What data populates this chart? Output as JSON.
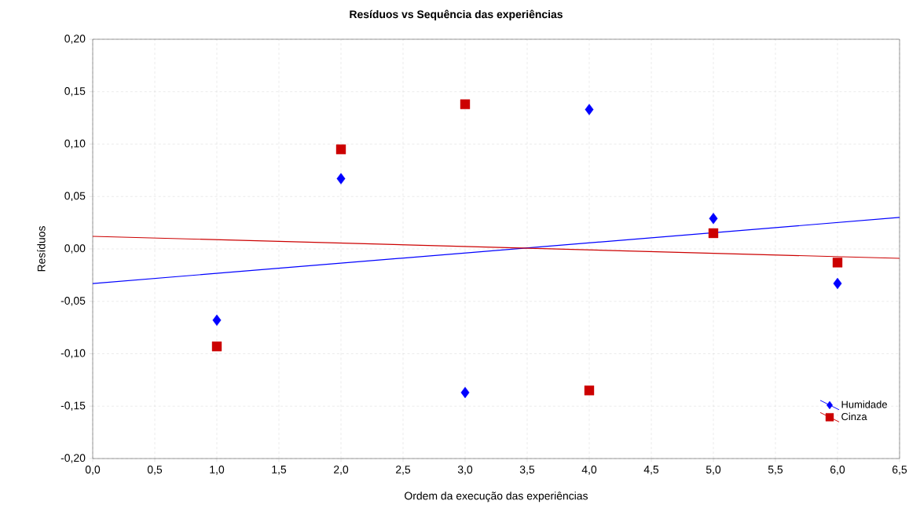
{
  "chart_data": {
    "type": "scatter",
    "title": "Resíduos vs Sequência das experiências",
    "xlabel": "Ordem da execução das experiências",
    "ylabel": "Resíduos",
    "series": [
      {
        "name": "Humidade",
        "type": "scatter",
        "color": "#0000ff",
        "marker": "diamond",
        "x": [
          1,
          2,
          3,
          4,
          5,
          6
        ],
        "values": [
          -0.068,
          0.067,
          -0.137,
          0.133,
          0.029,
          -0.033
        ]
      },
      {
        "name": "Cinza",
        "type": "scatter",
        "color": "#cc0000",
        "marker": "square",
        "x": [
          1,
          2,
          3,
          4,
          5,
          6
        ],
        "values": [
          -0.093,
          0.095,
          0.138,
          -0.135,
          0.015,
          -0.013
        ]
      },
      {
        "type": "line",
        "color": "#0000ff",
        "x": [
          0,
          6.5
        ],
        "values": [
          -0.033,
          0.03
        ]
      },
      {
        "type": "line",
        "color": "#cc0000",
        "x": [
          0,
          6.5
        ],
        "values": [
          0.012,
          -0.009
        ]
      }
    ],
    "xlim": [
      0,
      6.5
    ],
    "ylim": [
      -0.2,
      0.2
    ],
    "xticks": [
      {
        "value": 0,
        "label": "0,0"
      },
      {
        "value": 0.5,
        "label": "0,5"
      },
      {
        "value": 1,
        "label": "1,0"
      },
      {
        "value": 1.5,
        "label": "1,5"
      },
      {
        "value": 2,
        "label": "2,0"
      },
      {
        "value": 2.5,
        "label": "2,5"
      },
      {
        "value": 3,
        "label": "3,0"
      },
      {
        "value": 3.5,
        "label": "3,5"
      },
      {
        "value": 4,
        "label": "4,0"
      },
      {
        "value": 4.5,
        "label": "4,5"
      },
      {
        "value": 5,
        "label": "5,0"
      },
      {
        "value": 5.5,
        "label": "5,5"
      },
      {
        "value": 6,
        "label": "6,0"
      },
      {
        "value": 6.5,
        "label": "6,5"
      }
    ],
    "yticks": [
      {
        "value": -0.2,
        "label": "-0,20"
      },
      {
        "value": -0.15,
        "label": "-0,15"
      },
      {
        "value": -0.1,
        "label": "-0,10"
      },
      {
        "value": -0.05,
        "label": "-0,05"
      },
      {
        "value": 0,
        "label": "0,00"
      },
      {
        "value": 0.05,
        "label": "0,05"
      },
      {
        "value": 0.1,
        "label": "0,10"
      },
      {
        "value": 0.15,
        "label": "0,15"
      },
      {
        "value": 0.2,
        "label": "0,20"
      }
    ],
    "grid": true,
    "legend": "bottom right",
    "line_style": "solid"
  }
}
